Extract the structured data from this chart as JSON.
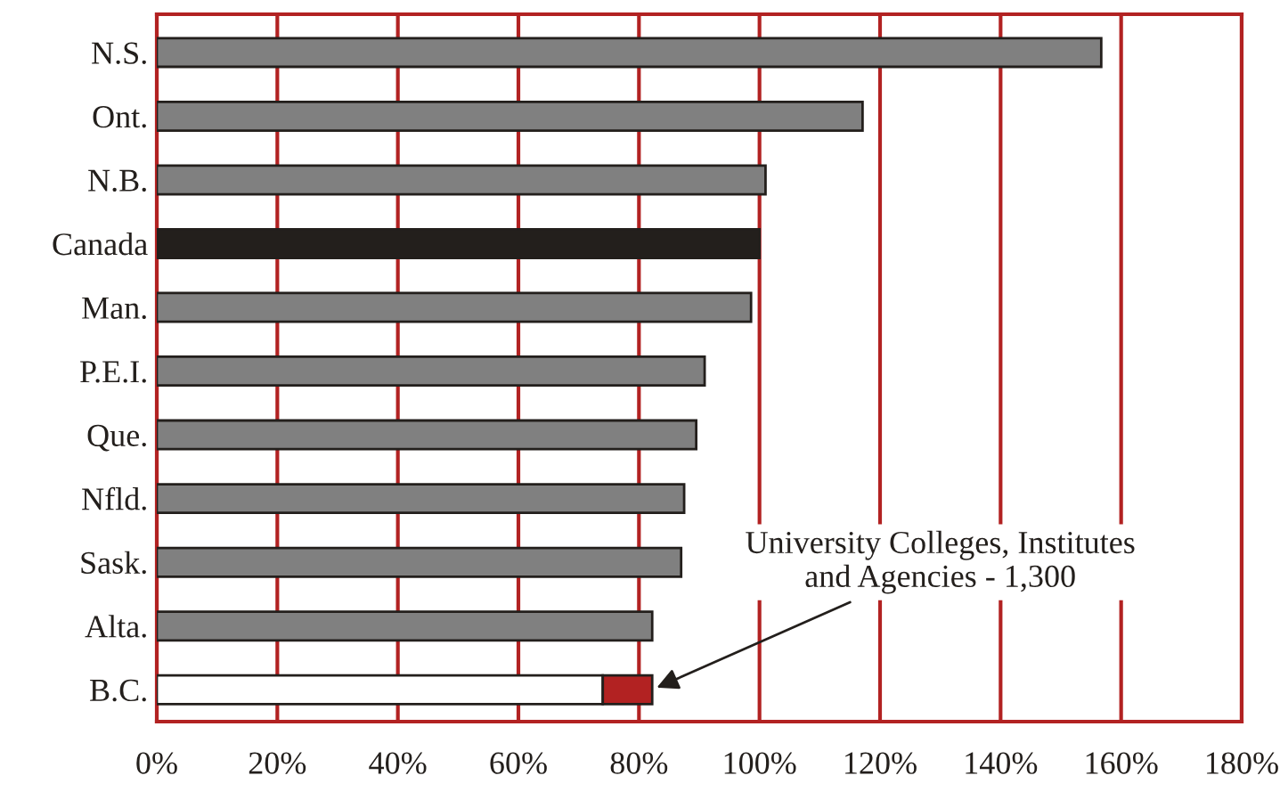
{
  "chart_data": {
    "type": "bar",
    "orientation": "horizontal",
    "stacked": true,
    "categories": [
      "N.S.",
      "Ont.",
      "N.B.",
      "Canada",
      "Man.",
      "P.E.I.",
      "Que.",
      "Nfld.",
      "Sask.",
      "Alta.",
      "B.C."
    ],
    "series": [
      {
        "colors": [
          "#808080",
          "#808080",
          "#808080",
          "#231f1c",
          "#808080",
          "#808080",
          "#808080",
          "#808080",
          "#808080",
          "#808080",
          "#ffffff"
        ],
        "values": [
          156.7,
          117.1,
          101,
          100,
          98.6,
          90.9,
          89.5,
          87.5,
          87,
          82.2,
          74
        ]
      },
      {
        "color": "#b22222",
        "values": [
          null,
          null,
          null,
          null,
          null,
          null,
          null,
          null,
          null,
          null,
          8.2
        ]
      }
    ],
    "xlim": [
      0,
      180
    ],
    "xticks": [
      {
        "value": 0,
        "label": "0%"
      },
      {
        "value": 20,
        "label": "20%"
      },
      {
        "value": 40,
        "label": "40%"
      },
      {
        "value": 60,
        "label": "60%"
      },
      {
        "value": 80,
        "label": "80%"
      },
      {
        "value": 100,
        "label": "100%"
      },
      {
        "value": 120,
        "label": "120%"
      },
      {
        "value": 140,
        "label": "140%"
      },
      {
        "value": 160,
        "label": "160%"
      },
      {
        "value": 180,
        "label": "180%"
      }
    ],
    "grid": "x",
    "annotations": [
      {
        "text": "University Colleges, Institutes\nand Agencies - 1,300",
        "x": 82.2,
        "y": "B.C."
      }
    ]
  }
}
